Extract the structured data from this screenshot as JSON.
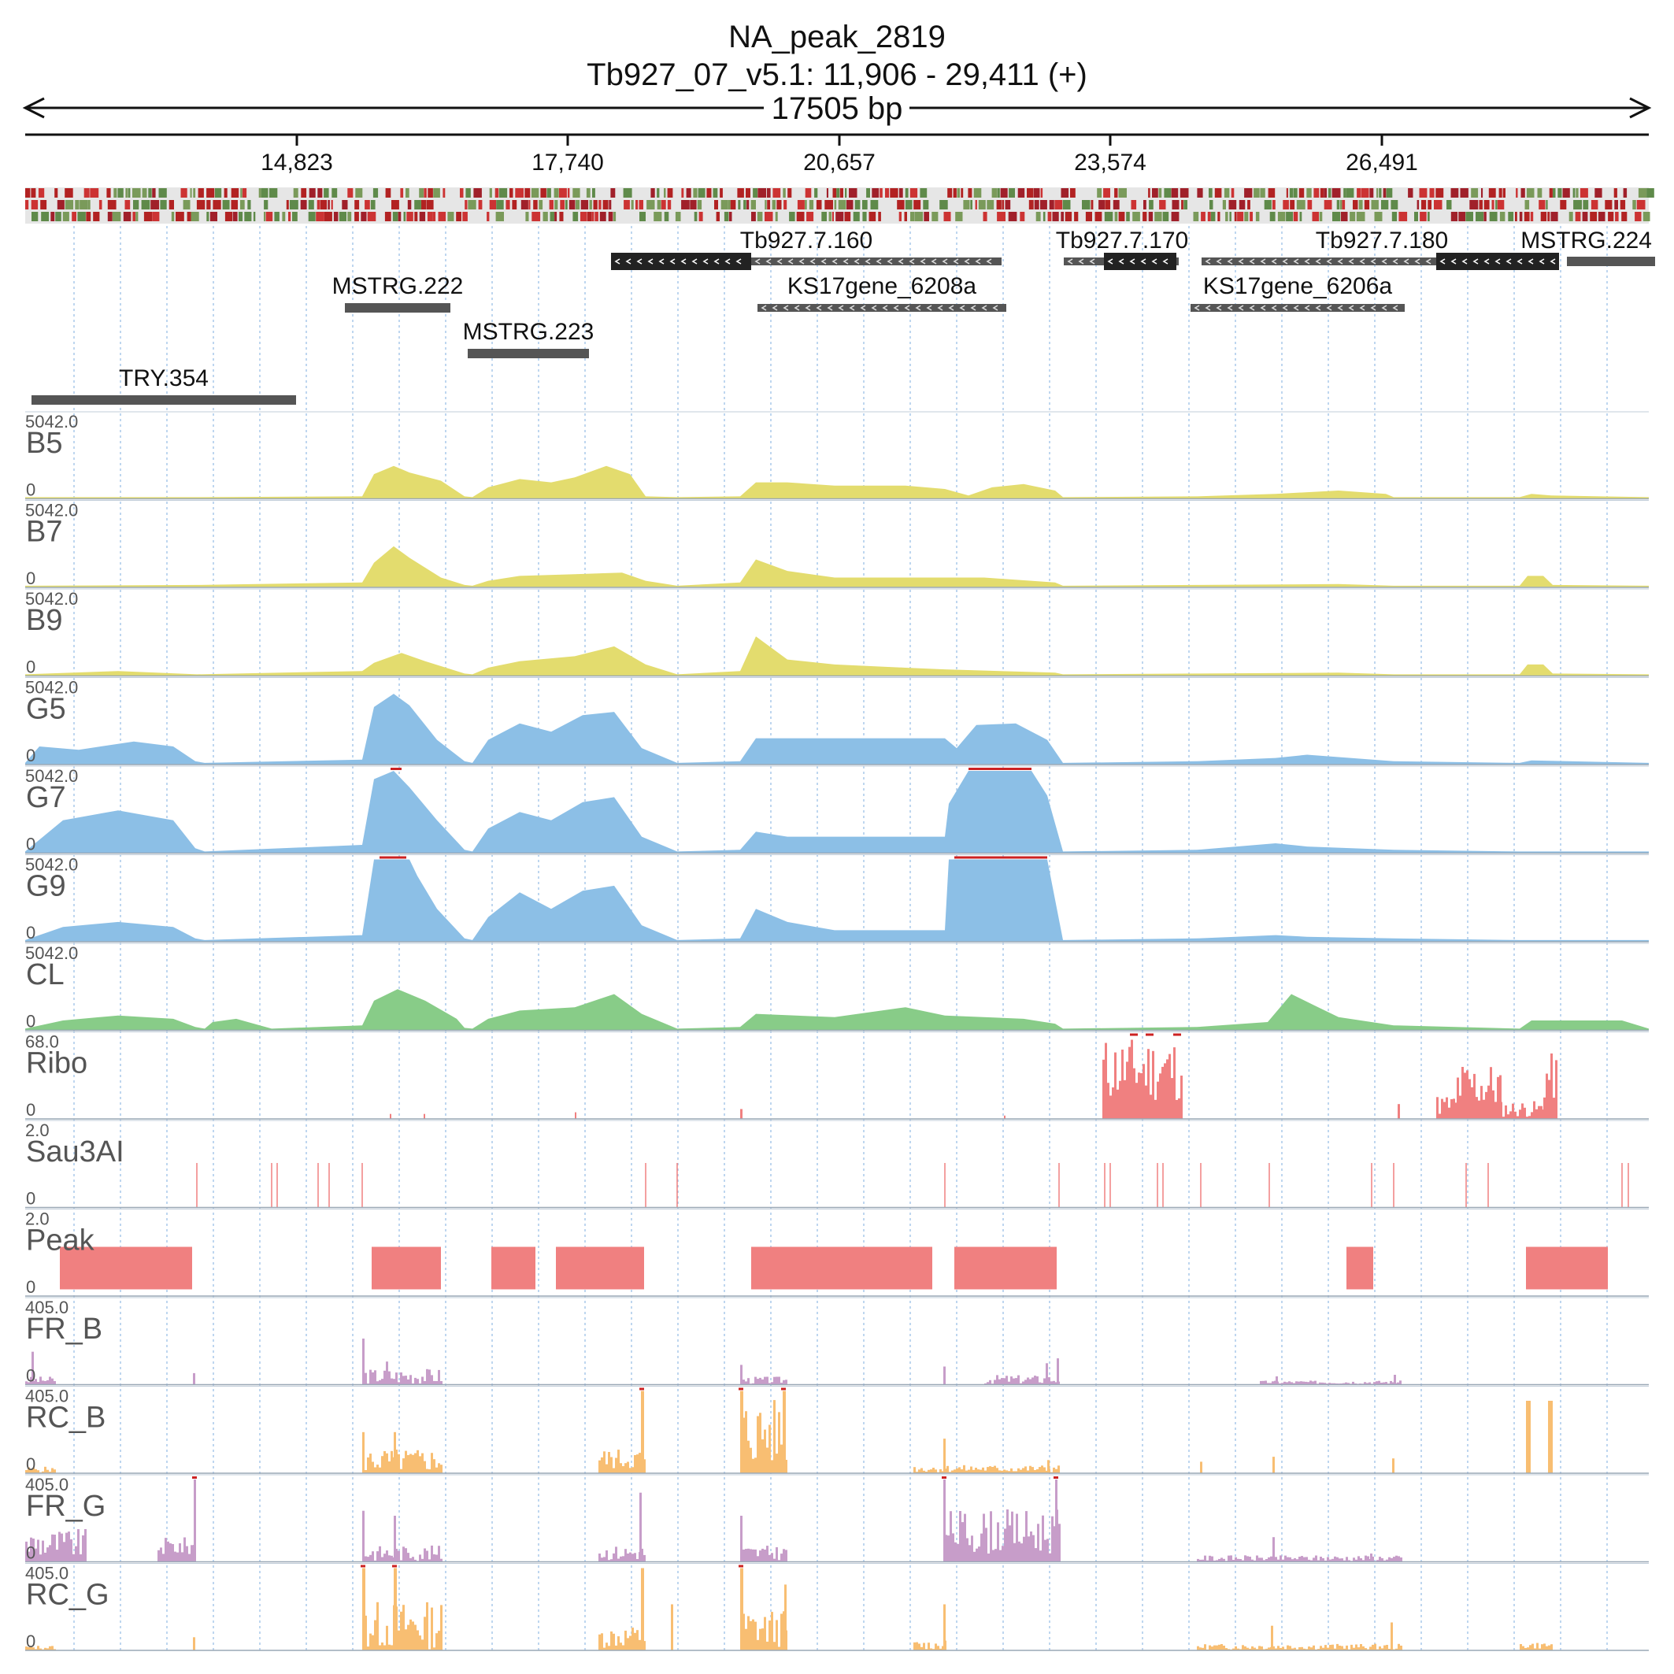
{
  "header": {
    "title": "NA_peak_2819",
    "locus": "Tb927_07_v5.1: 11,906 - 29,411 (+)",
    "span": "17505 bp"
  },
  "region": {
    "start": 11906,
    "end": 29411
  },
  "ruler": {
    "ticks": [
      "14,823",
      "17,740",
      "20,657",
      "23,574",
      "26,491"
    ]
  },
  "colors": {
    "yellow": "#e3dc6e",
    "blue": "#8cbfe6",
    "green": "#88cc88",
    "red": "#f08080",
    "purple": "#c79dc9",
    "orange": "#f8be72",
    "gene_dark": "#222222",
    "gene_gray": "#555555",
    "clip": "#cc2222"
  },
  "genes": [
    {
      "id": "MSTRG.222",
      "label": "MSTRG.222"
    },
    {
      "id": "MSTRG.223",
      "label": "MSTRG.223"
    },
    {
      "id": "TRY.354",
      "label": "TRY.354"
    },
    {
      "id": "Tb927.7.160",
      "label": "Tb927.7.160"
    },
    {
      "id": "KS17gene_6208a",
      "label": "KS17gene_6208a"
    },
    {
      "id": "Tb927.7.170",
      "label": "Tb927.7.170"
    },
    {
      "id": "Tb927.7.180",
      "label": "Tb927.7.180"
    },
    {
      "id": "KS17gene_6206a",
      "label": "KS17gene_6206a"
    },
    {
      "id": "MSTRG.224",
      "label": "MSTRG.224"
    }
  ],
  "tracks": [
    {
      "id": "B5",
      "name": "B5",
      "max": "5042.0",
      "min": "0",
      "color": "yellow"
    },
    {
      "id": "B7",
      "name": "B7",
      "max": "5042.0",
      "min": "0",
      "color": "yellow"
    },
    {
      "id": "B9",
      "name": "B9",
      "max": "5042.0",
      "min": "0",
      "color": "yellow"
    },
    {
      "id": "G5",
      "name": "G5",
      "max": "5042.0",
      "min": "0",
      "color": "blue"
    },
    {
      "id": "G7",
      "name": "G7",
      "max": "5042.0",
      "min": "0",
      "color": "blue"
    },
    {
      "id": "G9",
      "name": "G9",
      "max": "5042.0",
      "min": "0",
      "color": "blue"
    },
    {
      "id": "CL",
      "name": "CL",
      "max": "5042.0",
      "min": "0",
      "color": "green"
    },
    {
      "id": "Ribo",
      "name": "Ribo",
      "max": "68.0",
      "min": "0",
      "color": "red"
    },
    {
      "id": "Sau3AI",
      "name": "Sau3AI",
      "max": "2.0",
      "min": "0",
      "color": "red"
    },
    {
      "id": "Peak",
      "name": "Peak",
      "max": "2.0",
      "min": "0",
      "color": "red"
    },
    {
      "id": "FR_B",
      "name": "FR_B",
      "max": "405.0",
      "min": "0",
      "color": "purple"
    },
    {
      "id": "RC_B",
      "name": "RC_B",
      "max": "405.0",
      "min": "0",
      "color": "orange"
    },
    {
      "id": "FR_G",
      "name": "FR_G",
      "max": "405.0",
      "min": "0",
      "color": "purple"
    },
    {
      "id": "RC_G",
      "name": "RC_G",
      "max": "405.0",
      "min": "0",
      "color": "orange"
    }
  ]
}
